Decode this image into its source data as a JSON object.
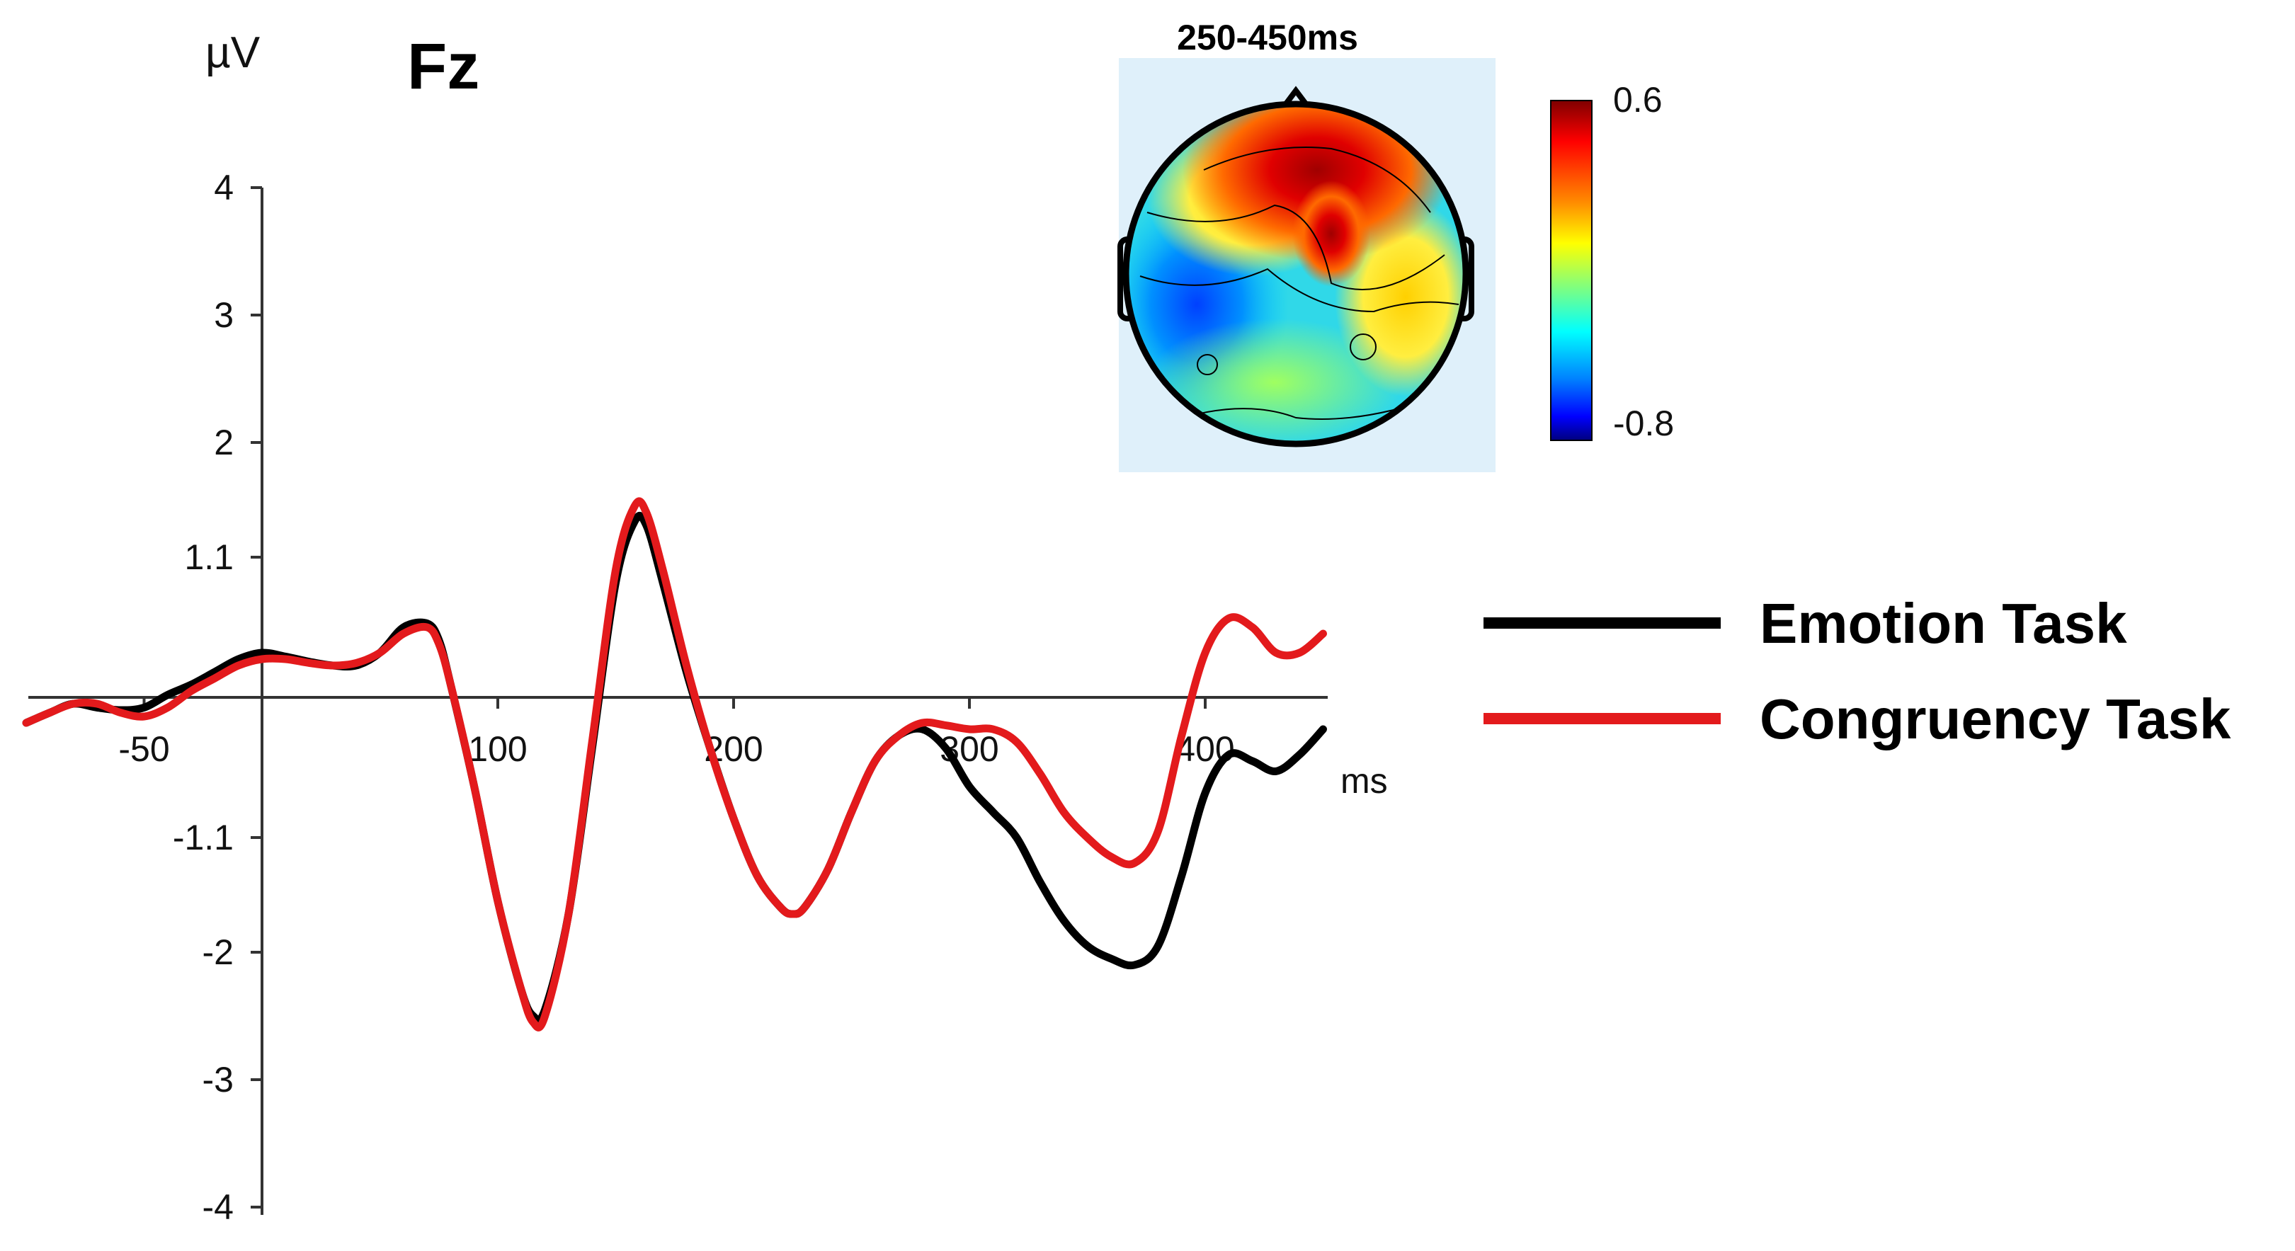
{
  "chart_data": {
    "type": "line",
    "title": "Fz",
    "ylabel": "µV",
    "xlabel": "ms",
    "xlim": [
      -100,
      450
    ],
    "ylim": [
      -4,
      4
    ],
    "y_ticks": [
      {
        "value": 4,
        "label": "4"
      },
      {
        "value": 3,
        "label": "3"
      },
      {
        "value": 2,
        "label": "2"
      },
      {
        "value": 1.1,
        "label": "1.1"
      },
      {
        "value": -1.1,
        "label": "-1.1"
      },
      {
        "value": -2,
        "label": "-2"
      },
      {
        "value": -3,
        "label": "-3"
      },
      {
        "value": -4,
        "label": "-4"
      }
    ],
    "x_ticks": [
      {
        "value": -50,
        "label": "-50"
      },
      {
        "value": 100,
        "label": "100"
      },
      {
        "value": 200,
        "label": "200"
      },
      {
        "value": 300,
        "label": "300"
      },
      {
        "value": 400,
        "label": "400"
      }
    ],
    "legend_position": "right",
    "series": [
      {
        "name": "Emotion Task",
        "color": "#000000",
        "points": [
          [
            -100,
            -0.2
          ],
          [
            -90,
            -0.12
          ],
          [
            -80,
            -0.05
          ],
          [
            -70,
            -0.08
          ],
          [
            -60,
            -0.1
          ],
          [
            -50,
            -0.08
          ],
          [
            -40,
            0.02
          ],
          [
            -30,
            0.1
          ],
          [
            -20,
            0.2
          ],
          [
            -10,
            0.3
          ],
          [
            0,
            0.35
          ],
          [
            10,
            0.32
          ],
          [
            20,
            0.28
          ],
          [
            30,
            0.25
          ],
          [
            40,
            0.25
          ],
          [
            50,
            0.35
          ],
          [
            60,
            0.55
          ],
          [
            70,
            0.58
          ],
          [
            75,
            0.45
          ],
          [
            80,
            0.1
          ],
          [
            90,
            -0.7
          ],
          [
            100,
            -1.6
          ],
          [
            110,
            -2.3
          ],
          [
            115,
            -2.5
          ],
          [
            120,
            -2.45
          ],
          [
            130,
            -1.7
          ],
          [
            140,
            -0.4
          ],
          [
            150,
            0.9
          ],
          [
            158,
            1.38
          ],
          [
            163,
            1.35
          ],
          [
            170,
            0.9
          ],
          [
            180,
            0.2
          ],
          [
            190,
            -0.4
          ],
          [
            200,
            -0.95
          ],
          [
            210,
            -1.4
          ],
          [
            220,
            -1.65
          ],
          [
            225,
            -1.7
          ],
          [
            230,
            -1.65
          ],
          [
            240,
            -1.35
          ],
          [
            250,
            -0.9
          ],
          [
            260,
            -0.5
          ],
          [
            270,
            -0.3
          ],
          [
            280,
            -0.25
          ],
          [
            290,
            -0.4
          ],
          [
            300,
            -0.7
          ],
          [
            310,
            -0.9
          ],
          [
            320,
            -1.1
          ],
          [
            330,
            -1.45
          ],
          [
            340,
            -1.75
          ],
          [
            350,
            -1.95
          ],
          [
            360,
            -2.05
          ],
          [
            370,
            -2.1
          ],
          [
            380,
            -1.95
          ],
          [
            390,
            -1.4
          ],
          [
            400,
            -0.75
          ],
          [
            410,
            -0.45
          ],
          [
            420,
            -0.5
          ],
          [
            430,
            -0.58
          ],
          [
            440,
            -0.45
          ],
          [
            450,
            -0.25
          ]
        ]
      },
      {
        "name": "Congruency Task",
        "color": "#e31a1c",
        "points": [
          [
            -100,
            -0.2
          ],
          [
            -90,
            -0.12
          ],
          [
            -80,
            -0.05
          ],
          [
            -70,
            -0.05
          ],
          [
            -60,
            -0.12
          ],
          [
            -50,
            -0.15
          ],
          [
            -40,
            -0.08
          ],
          [
            -30,
            0.05
          ],
          [
            -20,
            0.15
          ],
          [
            -10,
            0.25
          ],
          [
            0,
            0.3
          ],
          [
            10,
            0.3
          ],
          [
            20,
            0.27
          ],
          [
            30,
            0.25
          ],
          [
            40,
            0.27
          ],
          [
            50,
            0.35
          ],
          [
            60,
            0.5
          ],
          [
            70,
            0.55
          ],
          [
            75,
            0.42
          ],
          [
            80,
            0.1
          ],
          [
            90,
            -0.7
          ],
          [
            100,
            -1.6
          ],
          [
            110,
            -2.3
          ],
          [
            115,
            -2.55
          ],
          [
            120,
            -2.5
          ],
          [
            130,
            -1.7
          ],
          [
            140,
            -0.35
          ],
          [
            150,
            1.0
          ],
          [
            158,
            1.5
          ],
          [
            163,
            1.45
          ],
          [
            170,
            1.0
          ],
          [
            180,
            0.25
          ],
          [
            190,
            -0.4
          ],
          [
            200,
            -0.95
          ],
          [
            210,
            -1.4
          ],
          [
            220,
            -1.65
          ],
          [
            225,
            -1.7
          ],
          [
            230,
            -1.65
          ],
          [
            240,
            -1.35
          ],
          [
            250,
            -0.9
          ],
          [
            260,
            -0.5
          ],
          [
            270,
            -0.3
          ],
          [
            280,
            -0.2
          ],
          [
            290,
            -0.22
          ],
          [
            300,
            -0.25
          ],
          [
            310,
            -0.25
          ],
          [
            320,
            -0.35
          ],
          [
            330,
            -0.6
          ],
          [
            340,
            -0.9
          ],
          [
            350,
            -1.1
          ],
          [
            360,
            -1.25
          ],
          [
            370,
            -1.3
          ],
          [
            380,
            -1.05
          ],
          [
            390,
            -0.3
          ],
          [
            400,
            0.35
          ],
          [
            410,
            0.62
          ],
          [
            420,
            0.55
          ],
          [
            430,
            0.35
          ],
          [
            440,
            0.35
          ],
          [
            450,
            0.5
          ]
        ]
      }
    ]
  },
  "topomap": {
    "title": "250-450ms",
    "colorbar_max": "0.6",
    "colorbar_min": "-0.8"
  }
}
